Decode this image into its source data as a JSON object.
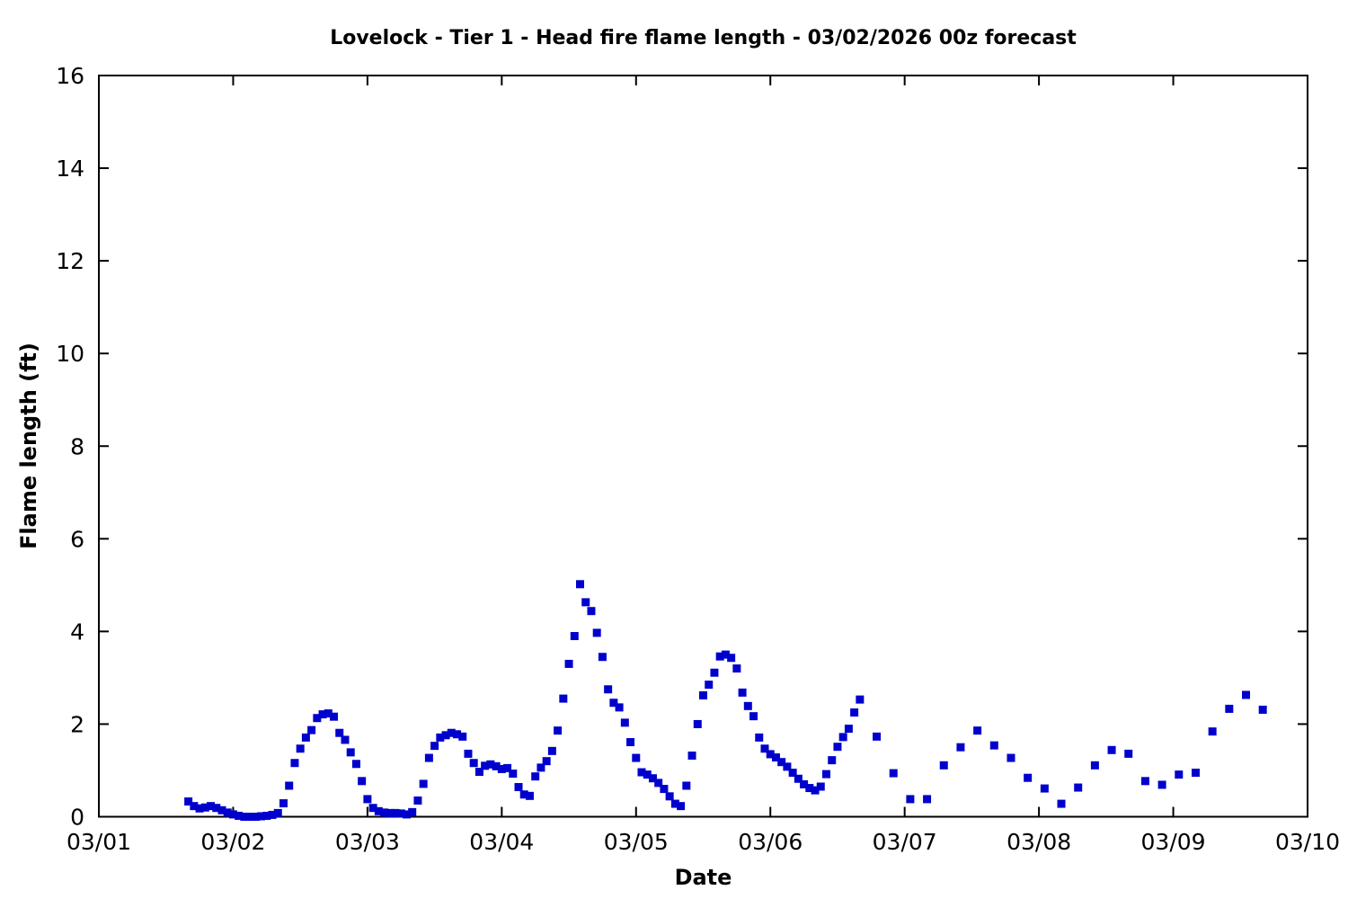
{
  "chart": {
    "title": "Lovelock - Tier 1 - Head fire flame length - 03/02/2026 00z forecast",
    "xlabel": "Date",
    "ylabel": "Flame length (ft)",
    "x_tick_labels": [
      "03/01",
      "03/02",
      "03/03",
      "03/04",
      "03/05",
      "03/06",
      "03/07",
      "03/08",
      "03/09",
      "03/10"
    ],
    "y_tick_labels": [
      "0",
      "2",
      "4",
      "6",
      "8",
      "10",
      "12",
      "14",
      "16"
    ],
    "marker_color": "#0000CD",
    "axis_color": "#000000",
    "background_color": "#ffffff"
  },
  "chart_data": {
    "type": "scatter",
    "marker": "square",
    "title": "Lovelock - Tier 1 - Head fire flame length - 03/02/2026 00z forecast",
    "xlabel": "Date",
    "ylabel": "Flame length (ft)",
    "x_range": [
      "03/01",
      "03/10"
    ],
    "ylim": [
      0,
      16
    ],
    "y_tick_step": 2,
    "grid": false,
    "legend": "none",
    "series": [
      {
        "name": "Head fire flame length (ft)",
        "points": [
          [
            "03/01 16:00",
            0.33
          ],
          [
            "03/01 17:00",
            0.23
          ],
          [
            "03/01 18:00",
            0.18
          ],
          [
            "03/01 19:00",
            0.2
          ],
          [
            "03/01 20:00",
            0.23
          ],
          [
            "03/01 21:00",
            0.19
          ],
          [
            "03/01 22:00",
            0.14
          ],
          [
            "03/01 23:00",
            0.09
          ],
          [
            "03/02 00:00",
            0.05
          ],
          [
            "03/02 01:00",
            0.02
          ],
          [
            "03/02 02:00",
            0.0
          ],
          [
            "03/02 03:00",
            0.0
          ],
          [
            "03/02 04:00",
            0.0
          ],
          [
            "03/02 05:00",
            0.01
          ],
          [
            "03/02 06:00",
            0.02
          ],
          [
            "03/02 07:00",
            0.04
          ],
          [
            "03/02 08:00",
            0.08
          ],
          [
            "03/02 09:00",
            0.29
          ],
          [
            "03/02 10:00",
            0.67
          ],
          [
            "03/02 11:00",
            1.16
          ],
          [
            "03/02 12:00",
            1.47
          ],
          [
            "03/02 13:00",
            1.71
          ],
          [
            "03/02 14:00",
            1.87
          ],
          [
            "03/02 15:00",
            2.13
          ],
          [
            "03/02 16:00",
            2.21
          ],
          [
            "03/02 17:00",
            2.23
          ],
          [
            "03/02 18:00",
            2.16
          ],
          [
            "03/02 19:00",
            1.81
          ],
          [
            "03/02 20:00",
            1.66
          ],
          [
            "03/02 21:00",
            1.39
          ],
          [
            "03/02 22:00",
            1.14
          ],
          [
            "03/02 23:00",
            0.77
          ],
          [
            "03/03 00:00",
            0.38
          ],
          [
            "03/03 01:00",
            0.19
          ],
          [
            "03/03 02:00",
            0.12
          ],
          [
            "03/03 03:00",
            0.09
          ],
          [
            "03/03 04:00",
            0.08
          ],
          [
            "03/03 05:00",
            0.08
          ],
          [
            "03/03 06:00",
            0.07
          ],
          [
            "03/03 07:00",
            0.05
          ],
          [
            "03/03 08:00",
            0.1
          ],
          [
            "03/03 09:00",
            0.35
          ],
          [
            "03/03 10:00",
            0.71
          ],
          [
            "03/03 11:00",
            1.27
          ],
          [
            "03/03 12:00",
            1.53
          ],
          [
            "03/03 13:00",
            1.71
          ],
          [
            "03/03 14:00",
            1.76
          ],
          [
            "03/03 15:00",
            1.81
          ],
          [
            "03/03 16:00",
            1.78
          ],
          [
            "03/03 17:00",
            1.73
          ],
          [
            "03/03 18:00",
            1.36
          ],
          [
            "03/03 19:00",
            1.16
          ],
          [
            "03/03 20:00",
            0.97
          ],
          [
            "03/03 21:00",
            1.1
          ],
          [
            "03/03 22:00",
            1.13
          ],
          [
            "03/03 23:00",
            1.09
          ],
          [
            "03/04 00:00",
            1.03
          ],
          [
            "03/04 01:00",
            1.05
          ],
          [
            "03/04 02:00",
            0.93
          ],
          [
            "03/04 03:00",
            0.64
          ],
          [
            "03/04 04:00",
            0.48
          ],
          [
            "03/04 05:00",
            0.45
          ],
          [
            "03/04 06:00",
            0.87
          ],
          [
            "03/04 07:00",
            1.06
          ],
          [
            "03/04 08:00",
            1.2
          ],
          [
            "03/04 09:00",
            1.42
          ],
          [
            "03/04 10:00",
            1.86
          ],
          [
            "03/04 11:00",
            2.55
          ],
          [
            "03/04 12:00",
            3.3
          ],
          [
            "03/04 13:00",
            3.9
          ],
          [
            "03/04 14:00",
            5.02
          ],
          [
            "03/04 15:00",
            4.63
          ],
          [
            "03/04 16:00",
            4.44
          ],
          [
            "03/04 17:00",
            3.97
          ],
          [
            "03/04 18:00",
            3.45
          ],
          [
            "03/04 19:00",
            2.75
          ],
          [
            "03/04 20:00",
            2.46
          ],
          [
            "03/04 21:00",
            2.36
          ],
          [
            "03/04 22:00",
            2.03
          ],
          [
            "03/04 23:00",
            1.61
          ],
          [
            "03/05 00:00",
            1.27
          ],
          [
            "03/05 01:00",
            0.96
          ],
          [
            "03/05 02:00",
            0.91
          ],
          [
            "03/05 03:00",
            0.83
          ],
          [
            "03/05 04:00",
            0.73
          ],
          [
            "03/05 05:00",
            0.6
          ],
          [
            "03/05 06:00",
            0.44
          ],
          [
            "03/05 07:00",
            0.28
          ],
          [
            "03/05 08:00",
            0.23
          ],
          [
            "03/05 09:00",
            0.67
          ],
          [
            "03/05 10:00",
            1.32
          ],
          [
            "03/05 11:00",
            2.0
          ],
          [
            "03/05 12:00",
            2.62
          ],
          [
            "03/05 13:00",
            2.85
          ],
          [
            "03/05 14:00",
            3.11
          ],
          [
            "03/05 15:00",
            3.46
          ],
          [
            "03/05 16:00",
            3.5
          ],
          [
            "03/05 17:00",
            3.43
          ],
          [
            "03/05 18:00",
            3.2
          ],
          [
            "03/05 19:00",
            2.68
          ],
          [
            "03/05 20:00",
            2.39
          ],
          [
            "03/05 21:00",
            2.17
          ],
          [
            "03/05 22:00",
            1.71
          ],
          [
            "03/05 23:00",
            1.47
          ],
          [
            "03/06 00:00",
            1.35
          ],
          [
            "03/06 01:00",
            1.28
          ],
          [
            "03/06 02:00",
            1.18
          ],
          [
            "03/06 03:00",
            1.08
          ],
          [
            "03/06 04:00",
            0.95
          ],
          [
            "03/06 05:00",
            0.82
          ],
          [
            "03/06 06:00",
            0.7
          ],
          [
            "03/06 07:00",
            0.62
          ],
          [
            "03/06 08:00",
            0.57
          ],
          [
            "03/06 09:00",
            0.65
          ],
          [
            "03/06 10:00",
            0.92
          ],
          [
            "03/06 11:00",
            1.22
          ],
          [
            "03/06 12:00",
            1.51
          ],
          [
            "03/06 13:00",
            1.72
          ],
          [
            "03/06 14:00",
            1.9
          ],
          [
            "03/06 15:00",
            2.25
          ],
          [
            "03/06 16:00",
            2.53
          ],
          [
            "03/06 19:00",
            1.73
          ],
          [
            "03/06 22:00",
            0.94
          ],
          [
            "03/07 01:00",
            0.38
          ],
          [
            "03/07 04:00",
            0.38
          ],
          [
            "03/07 07:00",
            1.11
          ],
          [
            "03/07 10:00",
            1.5
          ],
          [
            "03/07 13:00",
            1.86
          ],
          [
            "03/07 16:00",
            1.54
          ],
          [
            "03/07 19:00",
            1.27
          ],
          [
            "03/07 22:00",
            0.84
          ],
          [
            "03/08 01:00",
            0.61
          ],
          [
            "03/08 04:00",
            0.28
          ],
          [
            "03/08 07:00",
            0.63
          ],
          [
            "03/08 10:00",
            1.11
          ],
          [
            "03/08 13:00",
            1.44
          ],
          [
            "03/08 16:00",
            1.36
          ],
          [
            "03/08 19:00",
            0.77
          ],
          [
            "03/08 22:00",
            0.69
          ],
          [
            "03/09 01:00",
            0.91
          ],
          [
            "03/09 04:00",
            0.95
          ],
          [
            "03/09 07:00",
            1.84
          ],
          [
            "03/09 10:00",
            2.33
          ],
          [
            "03/09 13:00",
            2.63
          ],
          [
            "03/09 16:00",
            2.31
          ]
        ]
      }
    ]
  }
}
